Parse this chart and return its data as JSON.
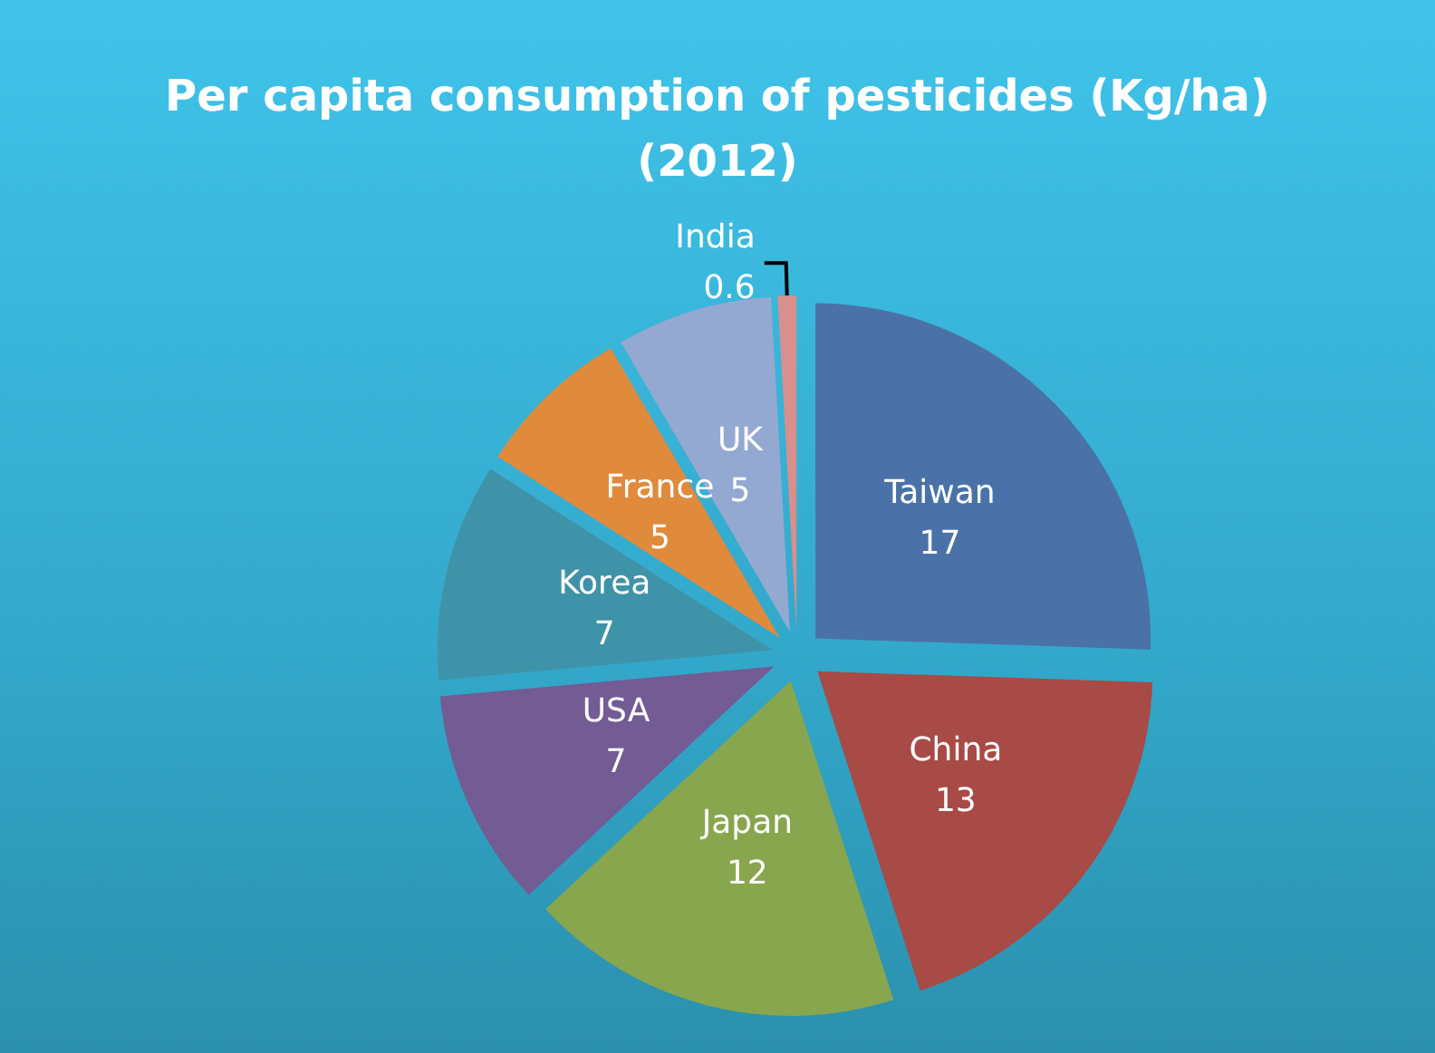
{
  "chart_data": {
    "type": "pie",
    "title": "Per capita consumption of pesticides (Kg/ha)\n(2012)",
    "categories": [
      "Taiwan",
      "China",
      "Japan",
      "USA",
      "Korea",
      "France",
      "UK",
      "India"
    ],
    "values": [
      17,
      13,
      12,
      7,
      7,
      5,
      5,
      0.6
    ],
    "colors": [
      "#4a72a8",
      "#a84a46",
      "#88a64e",
      "#735b94",
      "#3f93a8",
      "#e08a3c",
      "#93a9d1",
      "#d98f8c"
    ],
    "data_labels": true,
    "legend": false
  }
}
